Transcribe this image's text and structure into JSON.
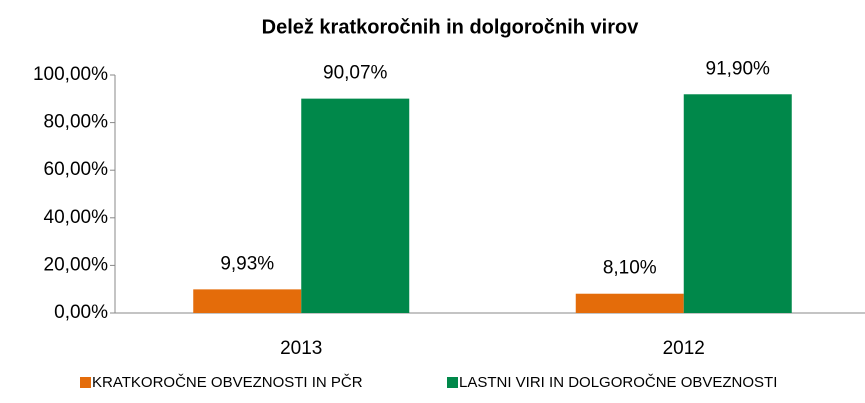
{
  "chart_data": {
    "type": "bar",
    "title": "Delež kratkoročnih in dolgoročnih virov",
    "categories": [
      "2013",
      "2012"
    ],
    "series": [
      {
        "name": "KRATKOROČNE OBVEZNOSTI IN PČR",
        "color": "#e46c0a",
        "values": [
          9.93,
          8.1
        ],
        "value_labels": [
          "9,93%",
          "8,10%"
        ]
      },
      {
        "name": "LASTNI VIRI IN DOLGOROČNE OBVEZNOSTI",
        "color": "#00884a",
        "values": [
          90.07,
          91.9
        ],
        "value_labels": [
          "90,07%",
          "91,90%"
        ]
      }
    ],
    "ylim": [
      0,
      100
    ],
    "yticks": [
      {
        "value": 0,
        "label": "0,00%"
      },
      {
        "value": 20,
        "label": "20,00%"
      },
      {
        "value": 40,
        "label": "40,00%"
      },
      {
        "value": 60,
        "label": "60,00%"
      },
      {
        "value": 80,
        "label": "80,00%"
      },
      {
        "value": 100,
        "label": "100,00%"
      }
    ],
    "legend": "bottom"
  }
}
